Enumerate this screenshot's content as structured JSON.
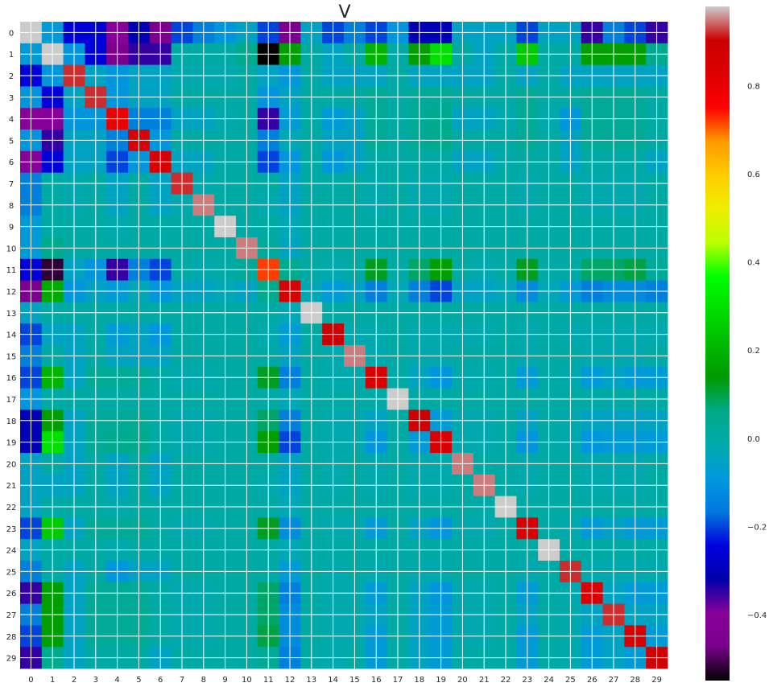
{
  "chart_data": {
    "type": "heatmap",
    "title": "V",
    "xlabel": "",
    "ylabel": "",
    "colormap": "nipy_spectral",
    "color_range": [
      -0.55,
      0.98
    ],
    "x_categories": [
      "0",
      "1",
      "2",
      "3",
      "4",
      "5",
      "6",
      "7",
      "8",
      "9",
      "10",
      "11",
      "12",
      "13",
      "14",
      "15",
      "16",
      "17",
      "18",
      "19",
      "20",
      "21",
      "22",
      "23",
      "24",
      "25",
      "26",
      "27",
      "28",
      "29"
    ],
    "y_categories": [
      "0",
      "1",
      "2",
      "3",
      "4",
      "5",
      "6",
      "7",
      "8",
      "9",
      "10",
      "11",
      "12",
      "13",
      "14",
      "15",
      "16",
      "17",
      "18",
      "19",
      "20",
      "21",
      "22",
      "23",
      "24",
      "25",
      "26",
      "27",
      "28",
      "29"
    ],
    "colorbar": {
      "ticks": [
        -0.4,
        -0.2,
        0.0,
        0.2,
        0.4,
        0.6,
        0.8
      ],
      "tick_labels": [
        "−0.4",
        "−0.2",
        "0.0",
        "0.2",
        "0.4",
        "0.6",
        "0.8"
      ]
    },
    "grid": true,
    "values": [
      [
        1.0,
        -0.08,
        -0.25,
        -0.25,
        -0.4,
        -0.3,
        -0.45,
        -0.2,
        -0.15,
        -0.1,
        -0.05,
        -0.2,
        -0.45,
        -0.05,
        -0.2,
        -0.15,
        -0.2,
        -0.1,
        -0.3,
        -0.3,
        -0.05,
        -0.05,
        -0.05,
        -0.2,
        -0.05,
        -0.05,
        -0.35,
        -0.15,
        -0.2,
        -0.35
      ],
      [
        -0.08,
        1.0,
        -0.1,
        -0.25,
        -0.45,
        -0.35,
        -0.35,
        0.0,
        0.0,
        0.0,
        0.05,
        -0.55,
        0.15,
        0.0,
        -0.05,
        0.0,
        0.2,
        0.0,
        0.15,
        0.3,
        0.0,
        -0.05,
        0.0,
        0.25,
        0.0,
        0.0,
        0.15,
        0.15,
        0.15,
        0.05
      ],
      [
        -0.25,
        -0.1,
        0.92,
        -0.05,
        -0.1,
        -0.05,
        -0.05,
        -0.02,
        -0.02,
        -0.02,
        0.0,
        -0.05,
        -0.1,
        0.0,
        -0.05,
        -0.05,
        -0.05,
        0.0,
        -0.05,
        -0.05,
        -0.05,
        -0.05,
        0.0,
        -0.05,
        0.0,
        -0.05,
        -0.05,
        -0.05,
        -0.05,
        -0.05
      ],
      [
        -0.1,
        -0.25,
        -0.05,
        0.92,
        -0.1,
        -0.05,
        -0.05,
        0.0,
        0.0,
        0.0,
        0.0,
        -0.1,
        -0.05,
        0.0,
        0.0,
        0.0,
        0.03,
        0.0,
        0.02,
        0.03,
        0.0,
        0.0,
        0.0,
        0.03,
        0.0,
        0.0,
        0.03,
        0.03,
        0.03,
        0.0
      ],
      [
        -0.4,
        -0.4,
        -0.1,
        -0.1,
        0.8,
        -0.15,
        -0.15,
        -0.05,
        -0.05,
        -0.02,
        0.0,
        -0.35,
        -0.08,
        0.0,
        -0.08,
        -0.05,
        0.03,
        0.0,
        0.03,
        0.05,
        -0.05,
        -0.05,
        -0.02,
        0.03,
        -0.02,
        -0.1,
        0.03,
        0.03,
        0.03,
        0.0
      ],
      [
        -0.1,
        -0.35,
        -0.05,
        -0.05,
        -0.15,
        0.85,
        -0.1,
        0.0,
        0.0,
        0.0,
        0.0,
        -0.15,
        -0.03,
        0.0,
        -0.05,
        -0.05,
        0.03,
        0.0,
        0.03,
        0.05,
        0.0,
        0.0,
        0.0,
        0.03,
        0.0,
        -0.05,
        0.03,
        0.03,
        0.03,
        0.0
      ],
      [
        -0.4,
        -0.25,
        -0.05,
        -0.05,
        -0.2,
        -0.1,
        0.85,
        -0.05,
        -0.05,
        0.0,
        0.0,
        -0.2,
        -0.1,
        0.0,
        -0.1,
        -0.05,
        0.0,
        0.0,
        0.0,
        0.0,
        -0.05,
        -0.05,
        0.0,
        0.0,
        0.0,
        -0.05,
        0.0,
        0.0,
        0.0,
        -0.05
      ],
      [
        -0.15,
        0.0,
        -0.02,
        0.0,
        -0.05,
        0.0,
        -0.05,
        0.92,
        -0.02,
        0.0,
        0.0,
        0.0,
        -0.05,
        0.0,
        0.0,
        0.0,
        -0.02,
        0.0,
        -0.02,
        -0.02,
        0.0,
        0.0,
        0.0,
        -0.02,
        0.0,
        0.0,
        -0.02,
        -0.02,
        -0.02,
        0.0
      ],
      [
        -0.15,
        0.0,
        -0.02,
        0.0,
        -0.05,
        0.0,
        -0.05,
        -0.02,
        0.95,
        0.0,
        0.0,
        -0.02,
        -0.05,
        0.0,
        0.0,
        0.0,
        -0.02,
        0.0,
        -0.02,
        -0.02,
        0.0,
        0.0,
        0.0,
        -0.02,
        0.0,
        0.0,
        -0.02,
        -0.02,
        -0.02,
        0.0
      ],
      [
        -0.08,
        0.0,
        0.0,
        0.0,
        -0.02,
        0.0,
        0.0,
        0.0,
        0.0,
        0.98,
        0.0,
        0.0,
        -0.03,
        0.0,
        0.0,
        0.0,
        0.0,
        0.0,
        0.0,
        0.0,
        0.0,
        0.0,
        0.0,
        0.0,
        0.0,
        0.0,
        0.0,
        0.0,
        0.0,
        0.0
      ],
      [
        -0.08,
        0.05,
        0.0,
        0.0,
        0.0,
        0.0,
        0.0,
        0.0,
        0.0,
        0.0,
        0.95,
        0.02,
        -0.05,
        0.0,
        0.0,
        0.0,
        0.0,
        0.0,
        0.0,
        0.0,
        0.0,
        0.0,
        0.0,
        0.0,
        0.0,
        0.0,
        0.0,
        0.0,
        0.0,
        0.0
      ],
      [
        -0.25,
        -0.52,
        -0.05,
        -0.1,
        -0.35,
        -0.15,
        -0.2,
        0.0,
        -0.02,
        0.0,
        0.02,
        0.72,
        0.05,
        0.0,
        -0.02,
        0.0,
        0.12,
        0.0,
        0.08,
        0.15,
        0.0,
        -0.02,
        0.0,
        0.12,
        0.0,
        0.0,
        0.08,
        0.08,
        0.1,
        0.03
      ],
      [
        -0.45,
        0.18,
        -0.1,
        -0.05,
        -0.08,
        -0.03,
        -0.1,
        -0.05,
        -0.05,
        -0.03,
        -0.05,
        0.05,
        0.85,
        -0.03,
        -0.08,
        -0.05,
        -0.15,
        -0.03,
        -0.15,
        -0.2,
        -0.05,
        -0.05,
        -0.03,
        -0.12,
        -0.03,
        -0.08,
        -0.15,
        -0.12,
        -0.12,
        -0.15
      ],
      [
        -0.05,
        0.0,
        0.0,
        0.0,
        0.0,
        0.0,
        0.0,
        0.0,
        0.0,
        0.0,
        0.0,
        0.0,
        -0.03,
        0.98,
        0.0,
        0.0,
        0.0,
        0.0,
        0.0,
        0.0,
        0.0,
        0.0,
        0.0,
        0.0,
        0.0,
        0.0,
        0.0,
        0.0,
        0.0,
        0.0
      ],
      [
        -0.2,
        -0.05,
        -0.05,
        0.0,
        -0.08,
        -0.05,
        -0.1,
        0.0,
        0.0,
        0.0,
        0.0,
        -0.02,
        -0.08,
        0.0,
        0.9,
        -0.02,
        -0.02,
        0.0,
        -0.02,
        -0.02,
        -0.02,
        -0.02,
        0.0,
        -0.02,
        0.0,
        -0.02,
        -0.02,
        -0.02,
        -0.02,
        -0.02
      ],
      [
        -0.15,
        0.0,
        -0.05,
        0.0,
        -0.05,
        -0.05,
        -0.05,
        0.0,
        0.0,
        0.0,
        0.0,
        0.0,
        -0.05,
        0.0,
        -0.02,
        0.95,
        -0.02,
        0.0,
        -0.02,
        -0.02,
        0.0,
        0.0,
        0.0,
        -0.02,
        0.0,
        0.0,
        -0.02,
        -0.02,
        -0.02,
        0.0
      ],
      [
        -0.2,
        0.2,
        -0.05,
        0.03,
        0.03,
        0.03,
        0.0,
        -0.02,
        -0.02,
        0.0,
        0.0,
        0.12,
        -0.15,
        0.0,
        -0.02,
        -0.02,
        0.85,
        0.0,
        -0.05,
        -0.1,
        -0.02,
        -0.02,
        0.0,
        -0.08,
        0.0,
        -0.02,
        -0.08,
        -0.05,
        -0.08,
        -0.08
      ],
      [
        -0.1,
        0.0,
        0.0,
        0.0,
        0.0,
        0.0,
        0.0,
        0.0,
        0.0,
        0.0,
        0.0,
        0.0,
        -0.03,
        0.0,
        0.0,
        0.0,
        0.0,
        0.98,
        0.0,
        0.0,
        0.0,
        0.0,
        0.0,
        0.0,
        0.0,
        0.0,
        0.0,
        0.0,
        0.0,
        0.0
      ],
      [
        -0.3,
        0.15,
        -0.05,
        0.02,
        0.03,
        0.03,
        0.0,
        -0.02,
        -0.02,
        0.0,
        0.0,
        0.08,
        -0.15,
        0.0,
        -0.02,
        -0.02,
        -0.05,
        0.0,
        0.88,
        -0.08,
        -0.02,
        -0.02,
        0.0,
        -0.05,
        0.0,
        -0.02,
        -0.05,
        -0.05,
        -0.05,
        -0.05
      ],
      [
        -0.3,
        0.3,
        -0.05,
        0.03,
        0.05,
        0.05,
        0.0,
        -0.02,
        -0.02,
        0.0,
        0.0,
        0.15,
        -0.2,
        0.0,
        -0.02,
        -0.02,
        -0.1,
        0.0,
        -0.08,
        0.85,
        -0.02,
        -0.02,
        0.0,
        -0.1,
        0.0,
        -0.02,
        -0.1,
        -0.08,
        -0.08,
        -0.08
      ],
      [
        -0.05,
        0.0,
        -0.05,
        0.0,
        -0.05,
        0.0,
        -0.05,
        0.0,
        0.0,
        0.0,
        0.0,
        0.0,
        -0.05,
        0.0,
        -0.02,
        0.0,
        -0.02,
        0.0,
        -0.02,
        -0.02,
        0.95,
        0.0,
        0.0,
        -0.02,
        0.0,
        0.0,
        -0.02,
        -0.02,
        -0.02,
        0.0
      ],
      [
        -0.05,
        -0.05,
        -0.05,
        0.0,
        -0.05,
        0.0,
        -0.05,
        0.0,
        0.0,
        0.0,
        0.0,
        -0.02,
        -0.05,
        0.0,
        -0.02,
        0.0,
        -0.02,
        0.0,
        -0.02,
        -0.02,
        0.0,
        0.95,
        0.0,
        -0.02,
        0.0,
        0.0,
        -0.02,
        -0.02,
        -0.02,
        0.0
      ],
      [
        -0.05,
        0.0,
        0.0,
        0.0,
        -0.02,
        0.0,
        0.0,
        0.0,
        0.0,
        0.0,
        0.0,
        0.0,
        -0.03,
        0.0,
        0.0,
        0.0,
        0.0,
        0.0,
        0.0,
        0.0,
        0.0,
        0.0,
        0.98,
        0.0,
        0.0,
        0.0,
        0.0,
        0.0,
        0.0,
        0.0
      ],
      [
        -0.2,
        0.25,
        -0.05,
        0.03,
        0.03,
        0.03,
        0.0,
        -0.02,
        -0.02,
        0.0,
        0.0,
        0.12,
        -0.12,
        0.0,
        -0.02,
        -0.02,
        -0.08,
        0.0,
        -0.05,
        -0.1,
        -0.02,
        -0.02,
        0.0,
        0.85,
        0.0,
        -0.02,
        -0.08,
        -0.05,
        -0.08,
        -0.08
      ],
      [
        -0.05,
        0.0,
        0.0,
        0.0,
        -0.02,
        0.0,
        0.0,
        0.0,
        0.0,
        0.0,
        0.0,
        0.0,
        -0.03,
        0.0,
        0.0,
        0.0,
        0.0,
        0.0,
        0.0,
        0.0,
        0.0,
        0.0,
        0.0,
        0.0,
        0.98,
        0.0,
        0.0,
        0.0,
        0.0,
        0.0
      ],
      [
        -0.15,
        0.0,
        -0.05,
        0.0,
        -0.1,
        -0.05,
        -0.05,
        0.0,
        0.0,
        0.0,
        0.0,
        0.0,
        -0.08,
        0.0,
        -0.02,
        0.0,
        -0.02,
        0.0,
        -0.02,
        -0.02,
        0.0,
        0.0,
        0.0,
        -0.02,
        0.0,
        0.92,
        -0.02,
        -0.02,
        -0.02,
        -0.02
      ],
      [
        -0.35,
        0.15,
        -0.05,
        0.03,
        0.03,
        0.03,
        0.0,
        -0.02,
        -0.02,
        0.0,
        0.0,
        0.08,
        -0.15,
        0.0,
        -0.02,
        -0.02,
        -0.08,
        0.0,
        -0.05,
        -0.1,
        -0.02,
        -0.02,
        0.0,
        -0.08,
        0.0,
        -0.02,
        0.85,
        -0.05,
        -0.08,
        -0.08
      ],
      [
        -0.15,
        0.15,
        -0.05,
        0.03,
        0.03,
        0.03,
        0.0,
        -0.02,
        -0.02,
        0.0,
        0.0,
        0.08,
        -0.12,
        0.0,
        -0.02,
        -0.02,
        -0.05,
        0.0,
        -0.05,
        -0.08,
        -0.02,
        -0.02,
        0.0,
        -0.05,
        0.0,
        -0.02,
        -0.05,
        0.92,
        -0.05,
        -0.05
      ],
      [
        -0.2,
        0.15,
        -0.05,
        0.03,
        0.03,
        0.03,
        0.0,
        -0.02,
        -0.02,
        0.0,
        0.0,
        0.1,
        -0.12,
        0.0,
        -0.02,
        -0.02,
        -0.08,
        0.0,
        -0.05,
        -0.08,
        -0.02,
        -0.02,
        0.0,
        -0.08,
        0.0,
        -0.02,
        -0.08,
        -0.05,
        0.85,
        -0.08
      ],
      [
        -0.35,
        0.05,
        -0.05,
        0.0,
        0.0,
        0.0,
        -0.05,
        0.0,
        0.0,
        0.0,
        0.0,
        0.03,
        -0.15,
        0.0,
        -0.02,
        0.0,
        -0.08,
        0.0,
        -0.05,
        -0.08,
        0.0,
        0.0,
        0.0,
        -0.08,
        0.0,
        -0.02,
        -0.08,
        -0.05,
        -0.08,
        0.88
      ]
    ]
  }
}
